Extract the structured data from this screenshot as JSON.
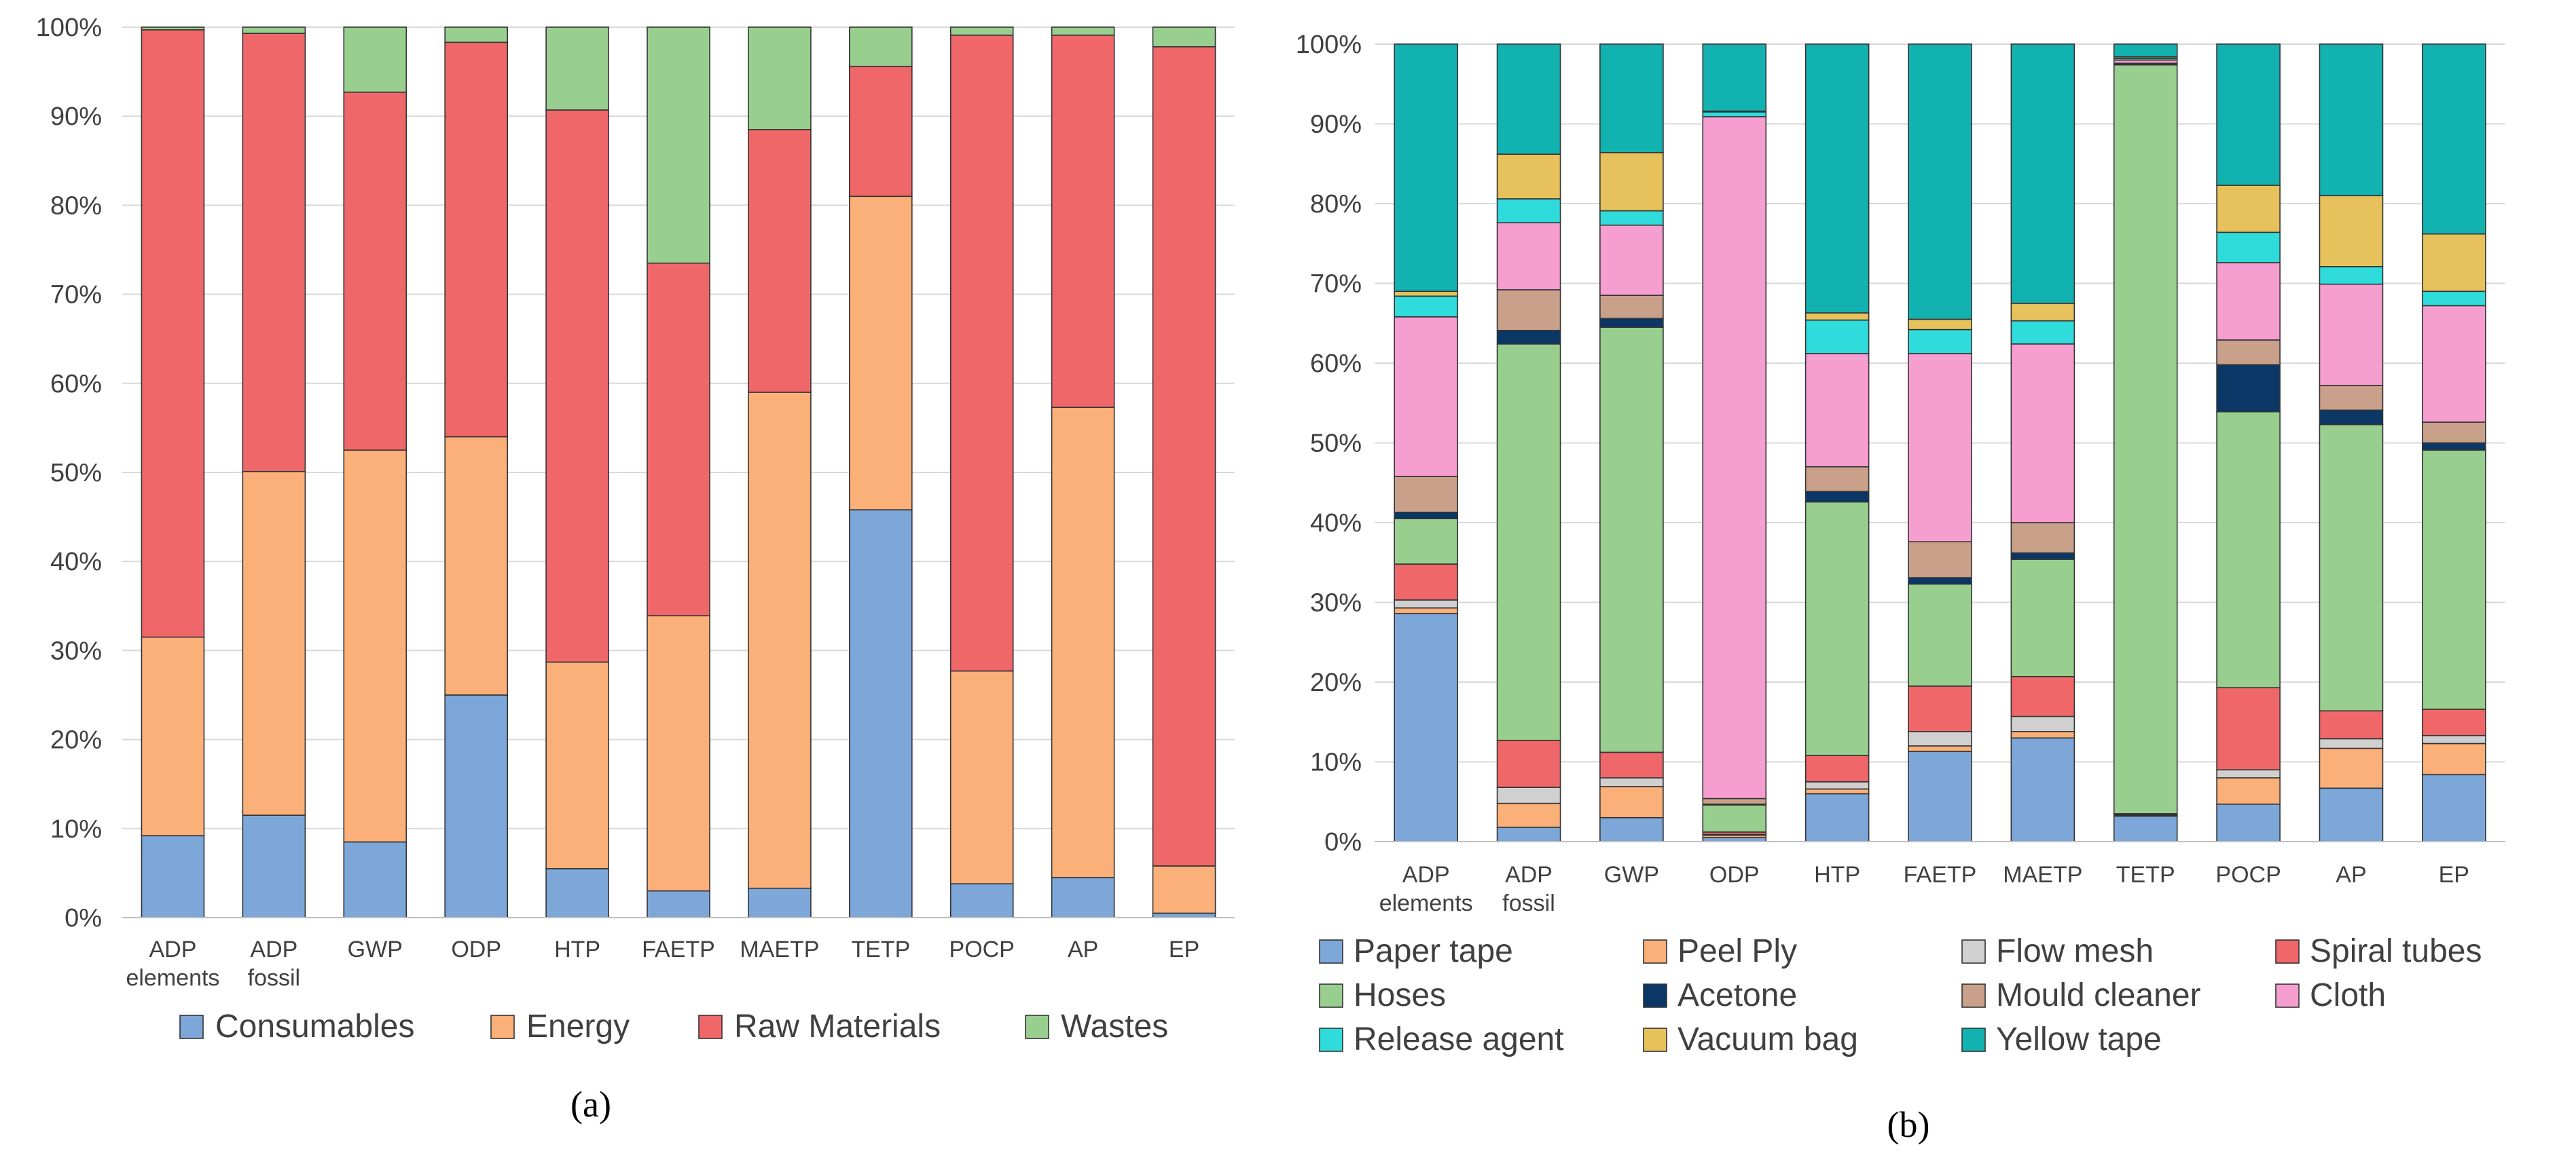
{
  "colors": {
    "Consumables": "#7da7d9",
    "Energy": "#fbb07a",
    "Raw Materials": "#f0676a",
    "Wastes": "#98cf8f",
    "Paper tape": "#7da7d9",
    "Peel Ply": "#fbb07a",
    "Flow mesh": "#d0d0d0",
    "Spiral tubes": "#f0676a",
    "Hoses": "#98cf8f",
    "Acetone": "#0b3766",
    "Mould cleaner": "#c9a08a",
    "Cloth": "#f79ed1",
    "Release agent": "#2fdbdb",
    "Vacuum bag": "#e6c15c",
    "Yellow tape": "#12b2b0"
  },
  "chart_data": [
    {
      "type": "bar",
      "stacked": true,
      "panel_label": "(a)",
      "title": "",
      "xlabel": "",
      "ylabel": "",
      "ylim": [
        0,
        100
      ],
      "yticks": [
        "0%",
        "10%",
        "20%",
        "30%",
        "40%",
        "50%",
        "60%",
        "70%",
        "80%",
        "90%",
        "100%"
      ],
      "grid": true,
      "legend_position": "bottom",
      "categories": [
        "ADP elements",
        "ADP fossil",
        "GWP",
        "ODP",
        "HTP",
        "FAETP",
        "MAETP",
        "TETP",
        "POCP",
        "AP",
        "EP"
      ],
      "category_lines": [
        [
          "ADP",
          "elements"
        ],
        [
          "ADP",
          "fossil"
        ],
        [
          "GWP"
        ],
        [
          "ODP"
        ],
        [
          "HTP"
        ],
        [
          "FAETP"
        ],
        [
          "MAETP"
        ],
        [
          "TETP"
        ],
        [
          "POCP"
        ],
        [
          "AP"
        ],
        [
          "EP"
        ]
      ],
      "series": [
        {
          "name": "Consumables",
          "values": [
            9.2,
            11.5,
            8.5,
            25.0,
            5.5,
            3.0,
            3.3,
            45.8,
            3.8,
            4.5,
            0.5
          ]
        },
        {
          "name": "Energy",
          "values": [
            22.3,
            38.6,
            44.0,
            29.0,
            23.2,
            30.9,
            55.7,
            35.2,
            23.9,
            52.8,
            5.3
          ]
        },
        {
          "name": "Raw Materials",
          "values": [
            68.2,
            49.2,
            40.2,
            44.3,
            62.0,
            39.6,
            29.5,
            14.6,
            71.4,
            41.8,
            92.0
          ]
        },
        {
          "name": "Wastes",
          "values": [
            0.3,
            0.7,
            7.3,
            1.7,
            9.3,
            26.5,
            11.5,
            4.4,
            0.9,
            0.9,
            2.2
          ]
        }
      ]
    },
    {
      "type": "bar",
      "stacked": true,
      "panel_label": "(b)",
      "title": "",
      "xlabel": "",
      "ylabel": "",
      "ylim": [
        0,
        100
      ],
      "yticks": [
        "0%",
        "10%",
        "20%",
        "30%",
        "40%",
        "50%",
        "60%",
        "70%",
        "80%",
        "90%",
        "100%"
      ],
      "grid": true,
      "legend_position": "bottom",
      "categories": [
        "ADP elements",
        "ADP fossil",
        "GWP",
        "ODP",
        "HTP",
        "FAETP",
        "MAETP",
        "TETP",
        "POCP",
        "AP",
        "EP"
      ],
      "category_lines": [
        [
          "ADP",
          "elements"
        ],
        [
          "ADP",
          "fossil"
        ],
        [
          "GWP"
        ],
        [
          "ODP"
        ],
        [
          "HTP"
        ],
        [
          "FAETP"
        ],
        [
          "MAETP"
        ],
        [
          "TETP"
        ],
        [
          "POCP"
        ],
        [
          "AP"
        ],
        [
          "EP"
        ]
      ],
      "series": [
        {
          "name": "Paper tape",
          "values": [
            28.6,
            1.8,
            3.0,
            0.5,
            6.0,
            11.3,
            13.0,
            3.2,
            4.7,
            6.7,
            8.4
          ]
        },
        {
          "name": "Peel Ply",
          "values": [
            0.7,
            3.0,
            3.9,
            0.3,
            0.6,
            0.7,
            0.8,
            0.1,
            3.3,
            5.0,
            3.9
          ]
        },
        {
          "name": "Flow mesh",
          "values": [
            1.0,
            2.0,
            1.1,
            0.1,
            0.9,
            1.8,
            1.9,
            0.1,
            1.0,
            1.2,
            1.0
          ]
        },
        {
          "name": "Spiral tubes",
          "values": [
            4.5,
            5.9,
            3.2,
            0.3,
            3.3,
            5.7,
            5.0,
            0.1,
            10.3,
            3.5,
            3.3
          ]
        },
        {
          "name": "Hoses",
          "values": [
            5.7,
            49.7,
            53.3,
            3.4,
            31.8,
            12.8,
            14.7,
            93.9,
            34.6,
            35.9,
            32.5
          ]
        },
        {
          "name": "Acetone",
          "values": [
            0.8,
            1.7,
            1.1,
            0.1,
            1.3,
            0.8,
            0.8,
            0.1,
            5.9,
            1.8,
            0.9
          ]
        },
        {
          "name": "Mould cleaner",
          "values": [
            4.5,
            5.1,
            2.9,
            0.7,
            3.1,
            4.5,
            3.8,
            0.1,
            3.1,
            3.1,
            2.6
          ]
        },
        {
          "name": "Cloth",
          "values": [
            20.0,
            8.4,
            8.8,
            85.5,
            14.2,
            23.6,
            22.4,
            0.4,
            9.7,
            12.7,
            14.6
          ]
        },
        {
          "name": "Release agent",
          "values": [
            2.6,
            3.0,
            1.8,
            0.6,
            4.2,
            3.0,
            2.9,
            0.2,
            3.8,
            2.2,
            1.8
          ]
        },
        {
          "name": "Vacuum bag",
          "values": [
            0.6,
            5.6,
            7.3,
            0.1,
            0.9,
            1.3,
            2.2,
            0.2,
            5.9,
            8.9,
            7.2
          ]
        },
        {
          "name": "Yellow tape",
          "values": [
            31.0,
            13.8,
            13.6,
            8.4,
            33.7,
            34.5,
            32.5,
            1.6,
            17.7,
            19.0,
            23.8
          ]
        }
      ]
    }
  ]
}
